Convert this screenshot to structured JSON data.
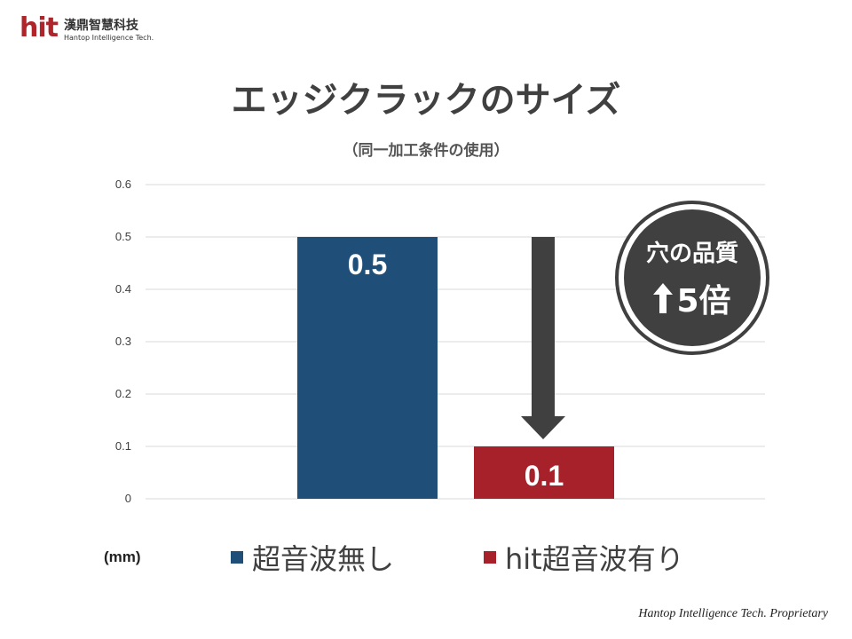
{
  "logo": {
    "brand": "hit",
    "name_cn": "漢鼎智慧科技",
    "name_en": "Hantop Intelligence Tech."
  },
  "title": "エッジクラックのサイズ",
  "subtitle": "（同一加工条件の使用）",
  "unit_label": "(mm)",
  "badge": {
    "line1": "穴の品質",
    "line2": "5倍",
    "arrow_icon": "up-arrow-icon"
  },
  "footer": "Hantop Intelligence Tech. Proprietary",
  "colors": {
    "series0": "#1f4e79",
    "series1": "#a6212a",
    "badge": "#404040",
    "grid": "#d9d9d9"
  },
  "chart_data": {
    "type": "bar",
    "categories": [
      ""
    ],
    "series": [
      {
        "name": "超音波無し",
        "values": [
          0.5
        ],
        "data_label": "0.5"
      },
      {
        "name": "hit超音波有り",
        "values": [
          0.1
        ],
        "data_label": "0.1"
      }
    ],
    "ylim": [
      0,
      0.6
    ],
    "yticks": [
      "0",
      "0.1",
      "0.2",
      "0.3",
      "0.4",
      "0.5",
      "0.6"
    ],
    "ylabel": "(mm)",
    "grid": true,
    "legend": "bottom",
    "annotation": {
      "type": "down-arrow",
      "from": 0.5,
      "to": 0.1
    }
  }
}
